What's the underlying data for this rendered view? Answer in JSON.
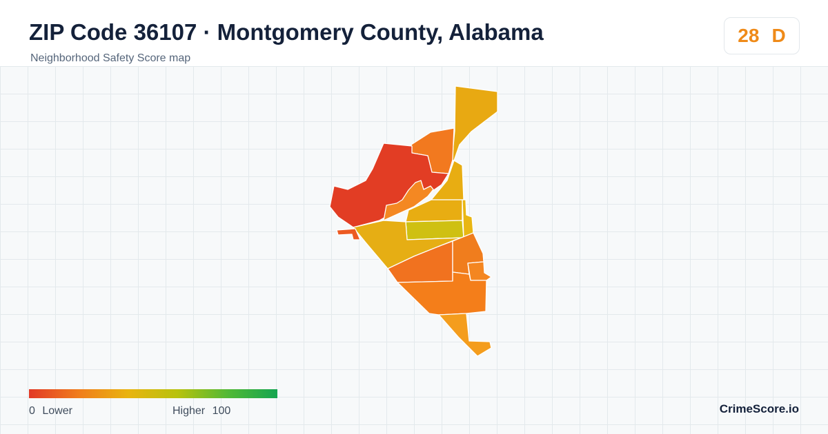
{
  "header": {
    "title": "ZIP Code 36107 · Montgomery County, Alabama",
    "subtitle": "Neighborhood Safety Score map"
  },
  "score": {
    "value": "28",
    "grade": "D",
    "color": "#ef8a18"
  },
  "map": {
    "regions": [
      {
        "name": "north-strip",
        "color": "#e8a912"
      },
      {
        "name": "north-lobe",
        "color": "#f2791f"
      },
      {
        "name": "west-district",
        "color": "#e23d24"
      },
      {
        "name": "central-inner",
        "color": "#f48822"
      },
      {
        "name": "center-right",
        "color": "#e8ad12"
      },
      {
        "name": "center-upper-band",
        "color": "#e8ad12"
      },
      {
        "name": "center-band",
        "color": "#cfc012"
      },
      {
        "name": "right-edge-strip",
        "color": "#e9b612"
      },
      {
        "name": "west-wedge",
        "color": "#e6ae14"
      },
      {
        "name": "west-spur",
        "color": "#ec5a22"
      },
      {
        "name": "south-center",
        "color": "#f1721f"
      },
      {
        "name": "south-right",
        "color": "#f07d1d"
      },
      {
        "name": "southeast-small",
        "color": "#f48620"
      },
      {
        "name": "south-large",
        "color": "#f47e1a"
      },
      {
        "name": "south-tail",
        "color": "#f49d1d"
      }
    ]
  },
  "legend": {
    "min_value": "0",
    "min_label": "Lower",
    "max_label": "Higher",
    "max_value": "100",
    "gradient_colors": [
      "#e23a27",
      "#f07d1d",
      "#e9b410",
      "#b7c20e",
      "#52b936",
      "#15a550"
    ]
  },
  "brand": "CrimeScore.io"
}
